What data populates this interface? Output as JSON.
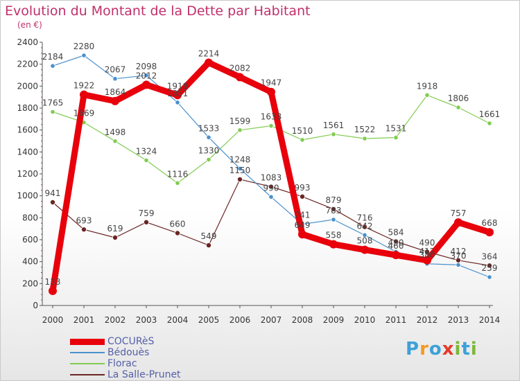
{
  "header": {
    "title": "Evolution du Montant de la Dette par Habitant",
    "unit": "(en €)"
  },
  "brand": {
    "text": "Proxiti",
    "colors": [
      "#3fa0d8",
      "#f39a1e",
      "#3fa0d8",
      "#e53a2b",
      "#7ab83b",
      "#3fa0d8",
      "#7ab83b"
    ]
  },
  "chart_data": {
    "type": "line",
    "title": "Evolution du Montant de la Dette par Habitant",
    "subtitle": "(en €)",
    "xlabel": "",
    "ylabel": "",
    "x": [
      "2000",
      "2001",
      "2002",
      "2003",
      "2004",
      "2005",
      "2006",
      "2007",
      "2008",
      "2009",
      "2010",
      "2011",
      "2012",
      "2013",
      "2014"
    ],
    "ylim": [
      0,
      2400
    ],
    "yticks": [
      "0",
      "200",
      "400",
      "600",
      "800",
      "1000",
      "1200",
      "1400",
      "1600",
      "1800",
      "2000",
      "2200",
      "2400"
    ],
    "legend_position": "bottom-left",
    "grid": false,
    "series": [
      {
        "name": "COCURèS",
        "color": "#e8000b",
        "values": [
          133,
          1922,
          1864,
          2012,
          1918,
          2214,
          2082,
          1947,
          649,
          558,
          508,
          460,
          412,
          757,
          668
        ]
      },
      {
        "name": "Bédouès",
        "color": "#4a90cc",
        "values": [
          2184,
          2280,
          2067,
          2098,
          1851,
          1533,
          1248,
          990,
          741,
          783,
          642,
          490,
          380,
          370,
          259
        ]
      },
      {
        "name": "Florac",
        "color": "#80cc50",
        "values": [
          1765,
          1669,
          1498,
          1324,
          1116,
          1330,
          1599,
          1638,
          1510,
          1561,
          1522,
          1531,
          1918,
          1806,
          1661
        ]
      },
      {
        "name": "La Salle-Prunet",
        "color": "#6b2424",
        "values": [
          941,
          693,
          619,
          759,
          660,
          549,
          1150,
          1083,
          993,
          879,
          716,
          584,
          490,
          412,
          364
        ]
      }
    ]
  }
}
